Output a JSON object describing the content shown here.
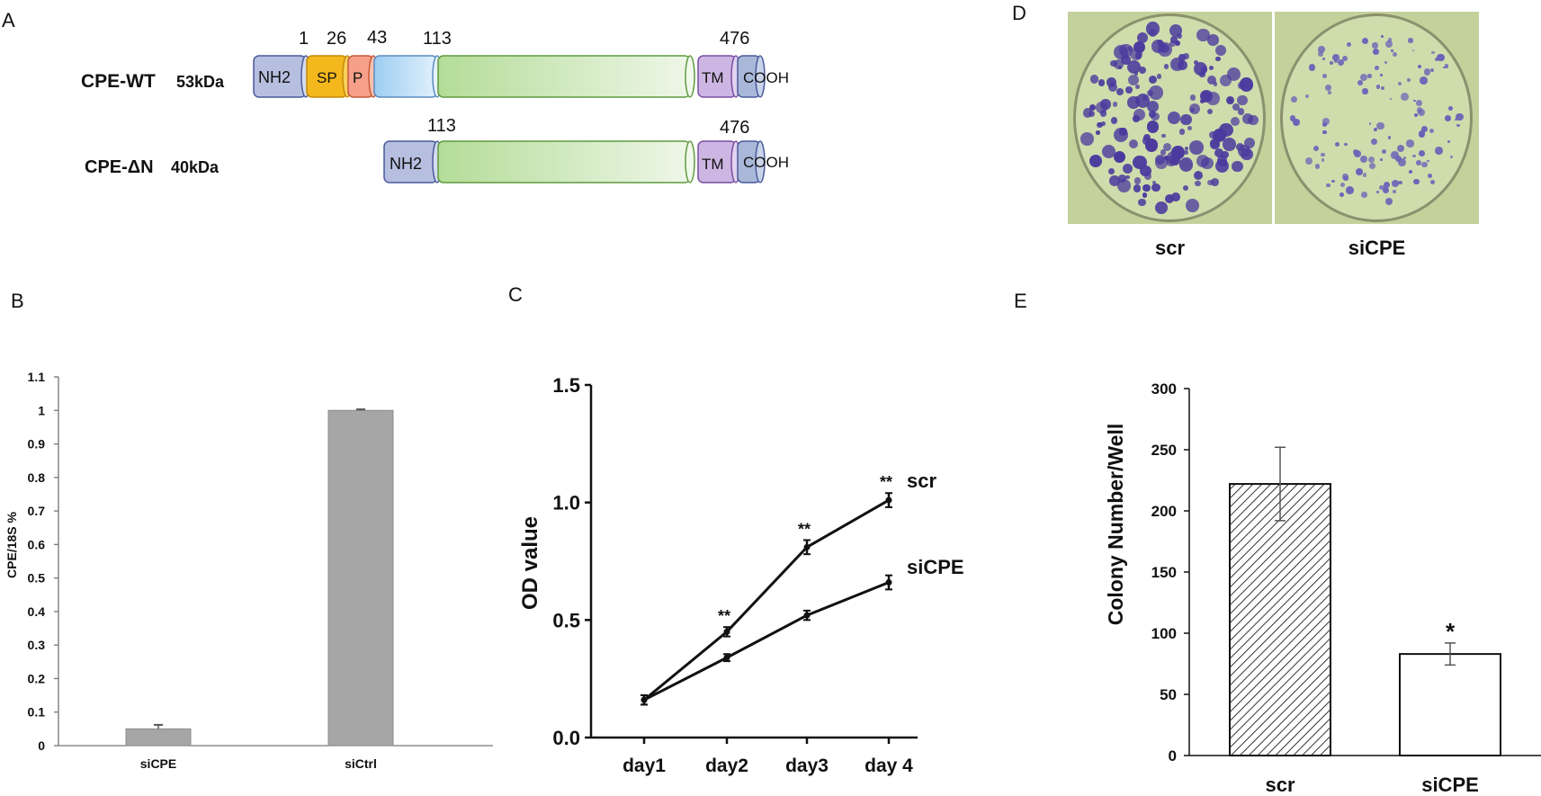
{
  "panels": {
    "a": "A",
    "b": "B",
    "c": "C",
    "d": "D",
    "e": "E"
  },
  "panel_a": {
    "wt_name": "CPE-WT",
    "wt_mass": "53kDa",
    "dn_name": "CPE-ΔN",
    "dn_mass": "40kDa",
    "domain_nh2": "NH2",
    "domain_sp": "SP",
    "domain_p": "P",
    "domain_tm": "TM",
    "domain_cooh": "COOH",
    "pos_1": "1",
    "pos_26": "26",
    "pos_43": "43",
    "pos_113": "113",
    "pos_476": "476",
    "colors": {
      "nh2": "#b7bfe0",
      "sp": "#f5b81c",
      "p": "#f6a089",
      "prodomain": "#a7d2f2",
      "catalytic": "#c6e6b0",
      "tm": "#cdb6e3",
      "cooh": "#a9b8d9"
    }
  },
  "panel_d": {
    "left_label": "scr",
    "right_label": "siCPE"
  },
  "chart_data": [
    {
      "panel": "B",
      "type": "bar",
      "categories": [
        "siCPE",
        "siCtrl"
      ],
      "values": [
        0.05,
        1.0
      ],
      "errors": [
        0.012,
        0.003
      ],
      "ylabel": "CPE/18S %",
      "xlabel": "",
      "ylim": [
        0,
        1.1
      ],
      "yticks": [
        "0",
        "0.1",
        "0.2",
        "0.3",
        "0.4",
        "0.5",
        "0.6",
        "0.7",
        "0.8",
        "0.9",
        "1",
        "1.1"
      ],
      "bar_color": "#a6a6a6"
    },
    {
      "panel": "C",
      "type": "line",
      "categories": [
        "day1",
        "day2",
        "day3",
        "day 4"
      ],
      "series": [
        {
          "name": "scr",
          "values": [
            0.16,
            0.45,
            0.81,
            1.01
          ],
          "errors": [
            0.02,
            0.02,
            0.03,
            0.03
          ]
        },
        {
          "name": "siCPE",
          "values": [
            0.16,
            0.34,
            0.52,
            0.66
          ],
          "errors": [
            0.02,
            0.015,
            0.02,
            0.03
          ]
        }
      ],
      "significance": [
        "",
        "**",
        "**",
        "**"
      ],
      "ylabel": "OD value",
      "xlabel": "",
      "ylim": [
        0,
        1.5
      ],
      "yticks": [
        "0.0",
        "0.5",
        "1.0",
        "1.5"
      ]
    },
    {
      "panel": "E",
      "type": "bar",
      "categories": [
        "scr",
        "siCPE"
      ],
      "values": [
        222,
        83
      ],
      "errors": [
        30,
        9
      ],
      "significance": [
        "",
        "*"
      ],
      "ylabel": "Colony Number/Well",
      "xlabel": "",
      "ylim": [
        0,
        300
      ],
      "yticks": [
        "0",
        "50",
        "100",
        "150",
        "200",
        "250",
        "300"
      ]
    }
  ]
}
